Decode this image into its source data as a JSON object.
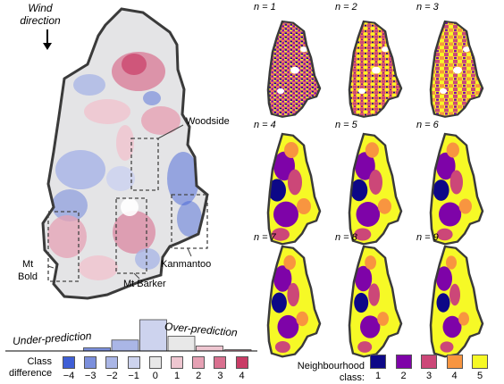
{
  "wind": {
    "line1": "Wind",
    "line2": "direction"
  },
  "towns": {
    "woodside": "Woodside",
    "mtbold_1": "Mt",
    "mtbold_2": "Bold",
    "mtbarker": "Mt Barker",
    "kanmantoo": "Kanmantoo"
  },
  "histogram": {
    "under_label": "Under-prediction",
    "over_label": "Over-prediction",
    "bars": [
      {
        "class": -4,
        "value": 0.0
      },
      {
        "class": -3,
        "value": 0.1
      },
      {
        "class": -2,
        "value": 0.35
      },
      {
        "class": -1,
        "value": 1.0
      },
      {
        "class": 0,
        "value": 0.47
      },
      {
        "class": 1,
        "value": 0.16
      },
      {
        "class": 2,
        "value": 0.04
      },
      {
        "class": 3,
        "value": 0.0
      },
      {
        "class": 4,
        "value": 0.0
      }
    ]
  },
  "class_legend": {
    "title_1": "Class",
    "title_2": "difference",
    "ticks": [
      "−4",
      "−3",
      "−2",
      "−1",
      "0",
      "1",
      "2",
      "3",
      "4"
    ],
    "colors": [
      "#3f5fd6",
      "#7b8fdc",
      "#aab6e6",
      "#cdd3ee",
      "#e8e8e8",
      "#eec6d0",
      "#e6a1b4",
      "#d9708f",
      "#c93c66"
    ]
  },
  "panels": [
    {
      "label": "n = 1"
    },
    {
      "label": "n = 2"
    },
    {
      "label": "n = 3"
    },
    {
      "label": "n = 4"
    },
    {
      "label": "n = 5"
    },
    {
      "label": "n = 6"
    },
    {
      "label": "n = 7"
    },
    {
      "label": "n = 8"
    },
    {
      "label": "n = 9"
    }
  ],
  "neigh_legend": {
    "title_1": "Neighbourhood",
    "title_2": "class:",
    "ticks": [
      "1",
      "2",
      "3",
      "4",
      "5"
    ],
    "colors": [
      "#0d0887",
      "#7e03a8",
      "#cc4778",
      "#f89540",
      "#f6f926"
    ]
  }
}
